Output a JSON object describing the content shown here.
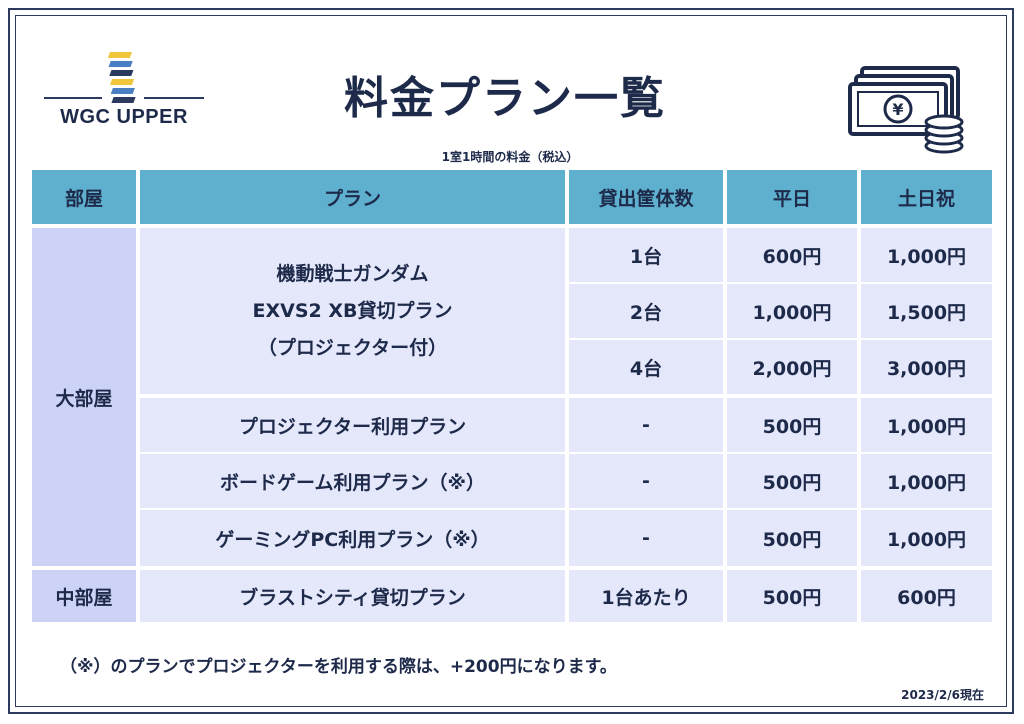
{
  "logo": {
    "text": "WGC UPPER"
  },
  "title": "料金プラン一覧",
  "subtitle": "1室1時間の料金（税込）",
  "colors": {
    "header": "#5fb0cf",
    "cell": "#e5e8fb",
    "room": "#cdd3f7",
    "text": "#1e2a4a"
  },
  "icons": {
    "money": "money-stack-icon",
    "logo": "stairs-logo-icon"
  },
  "table": {
    "headers": [
      "部屋",
      "プラン",
      "貸出筐体数",
      "平日",
      "土日祝"
    ],
    "rooms": {
      "large": "大部屋",
      "medium": "中部屋"
    },
    "gundam_plan": {
      "line1": "機動戦士ガンダム",
      "line2": "EXVS2 XB貸切プラン",
      "line3": "（プロジェクター付）"
    },
    "gundam_rows": [
      {
        "units": "1台",
        "weekday": "600円",
        "weekend": "1,000円"
      },
      {
        "units": "2台",
        "weekday": "1,000円",
        "weekend": "1,500円"
      },
      {
        "units": "4台",
        "weekday": "2,000円",
        "weekend": "3,000円"
      }
    ],
    "other_rows": [
      {
        "plan": "プロジェクター利用プラン",
        "units": "-",
        "weekday": "500円",
        "weekend": "1,000円"
      },
      {
        "plan": "ボードゲーム利用プラン（※）",
        "units": "-",
        "weekday": "500円",
        "weekend": "1,000円"
      },
      {
        "plan": "ゲーミングPC利用プラン（※）",
        "units": "-",
        "weekday": "500円",
        "weekend": "1,000円"
      }
    ],
    "medium_row": {
      "plan": "ブラストシティ貸切プラン",
      "units": "1台あたり",
      "weekday": "500円",
      "weekend": "600円"
    }
  },
  "note": "（※）のプランでプロジェクターを利用する際は、+200円になります。",
  "date": "2023/2/6現在"
}
